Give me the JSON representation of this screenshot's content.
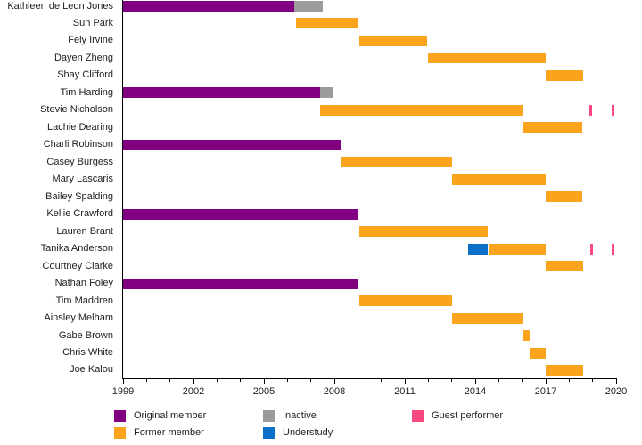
{
  "chart_data": {
    "type": "gantt",
    "title": "",
    "x_axis": {
      "min": 1999,
      "max": 2020,
      "major_ticks": [
        1999,
        2002,
        2005,
        2008,
        2011,
        2014,
        2017,
        2020
      ],
      "minor_tick_step": 1
    },
    "statuses": {
      "original": {
        "label": "Original member",
        "color": "#800080"
      },
      "former": {
        "label": "Former member",
        "color": "#FAA41E"
      },
      "inactive": {
        "label": "Inactive",
        "color": "#9C9C9C"
      },
      "understudy": {
        "label": "Understudy",
        "color": "#0B70C8"
      },
      "guest": {
        "label": "Guest performer",
        "color": "#F9487D"
      }
    },
    "legend_columns": [
      [
        "original",
        "former"
      ],
      [
        "inactive",
        "understudy"
      ],
      [
        "guest"
      ]
    ],
    "rows": [
      {
        "name": "Kathleen de Leon Jones",
        "segments": [
          {
            "start": 1999,
            "end": 2006.3,
            "status": "original"
          },
          {
            "start": 2006.3,
            "end": 2007.5,
            "status": "inactive"
          }
        ],
        "markers": []
      },
      {
        "name": "Sun Park",
        "segments": [
          {
            "start": 2006.35,
            "end": 2009.0,
            "status": "former"
          }
        ],
        "markers": []
      },
      {
        "name": "Fely Irvine",
        "segments": [
          {
            "start": 2009.05,
            "end": 2011.95,
            "status": "former"
          }
        ],
        "markers": []
      },
      {
        "name": "Dayen Zheng",
        "segments": [
          {
            "start": 2012.0,
            "end": 2017.0,
            "status": "former"
          }
        ],
        "markers": []
      },
      {
        "name": "Shay Clifford",
        "segments": [
          {
            "start": 2017.0,
            "end": 2018.6,
            "status": "former"
          }
        ],
        "markers": []
      },
      {
        "name": "Tim Harding",
        "segments": [
          {
            "start": 1999,
            "end": 2007.4,
            "status": "original"
          },
          {
            "start": 2007.4,
            "end": 2007.95,
            "status": "inactive"
          }
        ],
        "markers": []
      },
      {
        "name": "Stevie Nicholson",
        "segments": [
          {
            "start": 2007.4,
            "end": 2016.0,
            "status": "former"
          }
        ],
        "markers": [
          {
            "year": 2018.9,
            "status": "guest"
          },
          {
            "year": 2019.85,
            "status": "guest"
          }
        ]
      },
      {
        "name": "Lachie Dearing",
        "segments": [
          {
            "start": 2016.0,
            "end": 2018.55,
            "status": "former"
          }
        ],
        "markers": []
      },
      {
        "name": "Charli Robinson",
        "segments": [
          {
            "start": 1999,
            "end": 2008.25,
            "status": "original"
          }
        ],
        "markers": []
      },
      {
        "name": "Casey Burgess",
        "segments": [
          {
            "start": 2008.25,
            "end": 2013.0,
            "status": "former"
          }
        ],
        "markers": []
      },
      {
        "name": "Mary Lascaris",
        "segments": [
          {
            "start": 2013.0,
            "end": 2017.0,
            "status": "former"
          }
        ],
        "markers": []
      },
      {
        "name": "Bailey Spalding",
        "segments": [
          {
            "start": 2017.0,
            "end": 2018.55,
            "status": "former"
          }
        ],
        "markers": []
      },
      {
        "name": "Kellie Crawford",
        "segments": [
          {
            "start": 1999,
            "end": 2009.0,
            "status": "original"
          }
        ],
        "markers": []
      },
      {
        "name": "Lauren Brant",
        "segments": [
          {
            "start": 2009.05,
            "end": 2014.55,
            "status": "former"
          }
        ],
        "markers": []
      },
      {
        "name": "Tanika Anderson",
        "segments": [
          {
            "start": 2013.7,
            "end": 2014.55,
            "status": "understudy"
          },
          {
            "start": 2014.55,
            "end": 2017.0,
            "status": "former"
          }
        ],
        "markers": [
          {
            "year": 2018.95,
            "status": "guest"
          },
          {
            "year": 2019.85,
            "status": "guest"
          }
        ]
      },
      {
        "name": "Courtney Clarke",
        "segments": [
          {
            "start": 2017.0,
            "end": 2018.6,
            "status": "former"
          }
        ],
        "markers": []
      },
      {
        "name": "Nathan Foley",
        "segments": [
          {
            "start": 1999,
            "end": 2009.0,
            "status": "original"
          }
        ],
        "markers": []
      },
      {
        "name": "Tim Maddren",
        "segments": [
          {
            "start": 2009.05,
            "end": 2013.0,
            "status": "former"
          }
        ],
        "markers": []
      },
      {
        "name": "Ainsley Melham",
        "segments": [
          {
            "start": 2013.0,
            "end": 2016.05,
            "status": "former"
          }
        ],
        "markers": []
      },
      {
        "name": "Gabe Brown",
        "segments": [
          {
            "start": 2016.05,
            "end": 2016.3,
            "status": "former"
          }
        ],
        "markers": []
      },
      {
        "name": "Chris White",
        "segments": [
          {
            "start": 2016.3,
            "end": 2017.0,
            "status": "former"
          }
        ],
        "markers": []
      },
      {
        "name": "Joe Kalou",
        "segments": [
          {
            "start": 2017.0,
            "end": 2018.6,
            "status": "former"
          }
        ],
        "markers": []
      }
    ]
  }
}
